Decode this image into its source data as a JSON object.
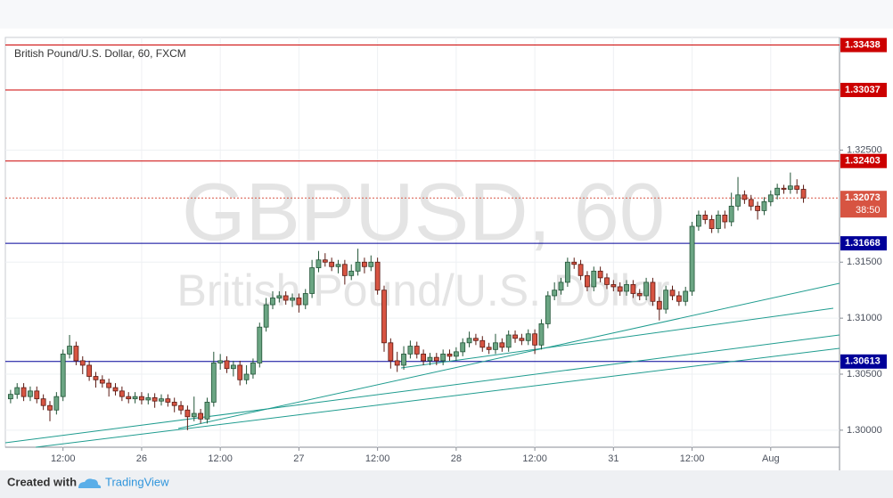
{
  "chart_data": {
    "type": "candlestick",
    "title": "British Pound/U.S. Dollar, 60, FXCM",
    "watermark": "GBPUSD, 60",
    "watermark_subtitle": "British Pound/U.S. Dollar",
    "up_color": "#6ba583",
    "down_color": "#d75442",
    "open": [
      1.3028,
      1.3032,
      1.3038,
      1.303,
      1.3035,
      1.3028,
      1.3022,
      1.3018,
      1.303,
      1.3068,
      1.3075,
      1.3062,
      1.3058,
      1.3048,
      1.3045,
      1.3042,
      1.3038,
      1.3035,
      1.303,
      1.3028,
      1.303,
      1.3027,
      1.3029,
      1.3026,
      1.3028,
      1.3025,
      1.3022,
      1.3018,
      1.3012,
      1.3015,
      1.301,
      1.3025,
      1.306,
      1.3062,
      1.3055,
      1.3058,
      1.3045,
      1.305,
      1.306,
      1.3092,
      1.3112,
      1.3118,
      1.312,
      1.3116,
      1.3118,
      1.3112,
      1.3122,
      1.3145,
      1.3152,
      1.315,
      1.3146,
      1.3148,
      1.3138,
      1.3142,
      1.315,
      1.3146,
      1.315,
      1.3125,
      1.3078,
      1.3062,
      1.3058,
      1.3068,
      1.3075,
      1.3068,
      1.3062,
      1.3065,
      1.3062,
      1.3068,
      1.3066,
      1.307,
      1.3078,
      1.3082,
      1.308,
      1.3074,
      1.3072,
      1.3078,
      1.3074,
      1.3085,
      1.3082,
      1.308,
      1.3086,
      1.3076,
      1.3095,
      1.312,
      1.3125,
      1.3132,
      1.315,
      1.3148,
      1.3138,
      1.3128,
      1.3142,
      1.3136,
      1.313,
      1.3128,
      1.3124,
      1.313,
      1.3122,
      1.312,
      1.3132,
      1.3115,
      1.3108,
      1.3125,
      1.312,
      1.3115,
      1.3124,
      1.3182,
      1.3192,
      1.3188,
      1.318,
      1.3192,
      1.3186,
      1.32,
      1.321,
      1.3206,
      1.32,
      1.3196,
      1.3204,
      1.321,
      1.3216,
      1.3215,
      1.3218,
      1.3215
    ],
    "high": [
      1.3036,
      1.3042,
      1.3042,
      1.3039,
      1.3039,
      1.3032,
      1.3026,
      1.3034,
      1.3072,
      1.3085,
      1.3079,
      1.3066,
      1.3062,
      1.3052,
      1.3049,
      1.3046,
      1.3042,
      1.3039,
      1.3034,
      1.3034,
      1.3034,
      1.3033,
      1.3033,
      1.3032,
      1.3032,
      1.3029,
      1.3026,
      1.3022,
      1.303,
      1.3019,
      1.3029,
      1.307,
      1.3068,
      1.3066,
      1.3062,
      1.3062,
      1.3058,
      1.3064,
      1.3096,
      1.3118,
      1.3124,
      1.3124,
      1.3124,
      1.3122,
      1.3122,
      1.3126,
      1.3152,
      1.316,
      1.3158,
      1.3154,
      1.3152,
      1.3152,
      1.3148,
      1.3162,
      1.3154,
      1.3156,
      1.3154,
      1.3129,
      1.3082,
      1.307,
      1.3075,
      1.308,
      1.3079,
      1.3072,
      1.3069,
      1.3069,
      1.3072,
      1.3072,
      1.3074,
      1.3082,
      1.3088,
      1.3086,
      1.3084,
      1.3078,
      1.3086,
      1.3082,
      1.3089,
      1.3089,
      1.3086,
      1.309,
      1.309,
      1.3099,
      1.3124,
      1.3132,
      1.3136,
      1.3154,
      1.3154,
      1.3152,
      1.3142,
      1.3146,
      1.3146,
      1.314,
      1.3134,
      1.3132,
      1.3134,
      1.3134,
      1.3126,
      1.3136,
      1.3136,
      1.3119,
      1.3129,
      1.3129,
      1.3124,
      1.3128,
      1.3186,
      1.3196,
      1.3196,
      1.3192,
      1.3196,
      1.3196,
      1.3212,
      1.3226,
      1.3214,
      1.321,
      1.3204,
      1.3208,
      1.3214,
      1.322,
      1.3219,
      1.323,
      1.3224,
      1.3219
    ],
    "low": [
      1.3024,
      1.3028,
      1.3026,
      1.3026,
      1.3024,
      1.3018,
      1.3008,
      1.3014,
      1.3026,
      1.3064,
      1.3058,
      1.305,
      1.3044,
      1.3038,
      1.3038,
      1.303,
      1.3031,
      1.3026,
      1.3024,
      1.3024,
      1.3023,
      1.3023,
      1.302,
      1.3022,
      1.3021,
      1.3016,
      1.3014,
      1.3,
      1.3008,
      1.3006,
      1.3006,
      1.3021,
      1.3054,
      1.3051,
      1.3048,
      1.304,
      1.3041,
      1.3046,
      1.3056,
      1.3088,
      1.3108,
      1.3114,
      1.3112,
      1.311,
      1.3105,
      1.3108,
      1.3118,
      1.3141,
      1.3146,
      1.3142,
      1.314,
      1.313,
      1.3134,
      1.3138,
      1.314,
      1.3142,
      1.3121,
      1.307,
      1.3055,
      1.3052,
      1.3054,
      1.3064,
      1.3064,
      1.3058,
      1.3058,
      1.3058,
      1.3058,
      1.3062,
      1.3062,
      1.3066,
      1.3074,
      1.3076,
      1.307,
      1.3068,
      1.3068,
      1.307,
      1.307,
      1.3078,
      1.3076,
      1.3076,
      1.3068,
      1.3072,
      1.3091,
      1.3116,
      1.3121,
      1.3128,
      1.3144,
      1.3134,
      1.3124,
      1.3124,
      1.3132,
      1.3126,
      1.3124,
      1.312,
      1.312,
      1.3118,
      1.3116,
      1.3116,
      1.3111,
      1.3098,
      1.3104,
      1.3116,
      1.3111,
      1.3111,
      1.312,
      1.3178,
      1.3184,
      1.3176,
      1.3176,
      1.318,
      1.3182,
      1.3196,
      1.3202,
      1.3196,
      1.3188,
      1.3192,
      1.32,
      1.3206,
      1.3211,
      1.3211,
      1.3211,
      1.3203
    ],
    "close": [
      1.3032,
      1.3038,
      1.303,
      1.3035,
      1.3028,
      1.3022,
      1.3018,
      1.303,
      1.3068,
      1.3075,
      1.3062,
      1.3058,
      1.3048,
      1.3045,
      1.3042,
      1.3038,
      1.3035,
      1.303,
      1.3028,
      1.303,
      1.3027,
      1.3029,
      1.3026,
      1.3028,
      1.3025,
      1.3022,
      1.3018,
      1.3012,
      1.3015,
      1.301,
      1.3025,
      1.306,
      1.3062,
      1.3055,
      1.3058,
      1.3045,
      1.305,
      1.306,
      1.3092,
      1.3112,
      1.3118,
      1.312,
      1.3116,
      1.3118,
      1.3112,
      1.3122,
      1.3145,
      1.3152,
      1.315,
      1.3146,
      1.3148,
      1.3138,
      1.3142,
      1.315,
      1.3146,
      1.315,
      1.3125,
      1.3078,
      1.3062,
      1.3058,
      1.3068,
      1.3075,
      1.3068,
      1.3062,
      1.3065,
      1.3062,
      1.3068,
      1.3066,
      1.307,
      1.3078,
      1.3082,
      1.308,
      1.3074,
      1.3072,
      1.3078,
      1.3074,
      1.3085,
      1.3082,
      1.308,
      1.3086,
      1.3076,
      1.3095,
      1.312,
      1.3125,
      1.3132,
      1.315,
      1.3148,
      1.3138,
      1.3128,
      1.3142,
      1.3136,
      1.313,
      1.3128,
      1.3124,
      1.313,
      1.3122,
      1.312,
      1.3132,
      1.3115,
      1.3108,
      1.3125,
      1.312,
      1.3115,
      1.3124,
      1.3182,
      1.3192,
      1.3188,
      1.318,
      1.3192,
      1.3186,
      1.32,
      1.321,
      1.3206,
      1.32,
      1.3196,
      1.3204,
      1.321,
      1.3216,
      1.3215,
      1.3218,
      1.3215,
      1.32073
    ],
    "xlim": [
      -0.8,
      126.5
    ],
    "xticks": [
      {
        "value": 8,
        "label": "12:00"
      },
      {
        "value": 20,
        "label": "26"
      },
      {
        "value": 32,
        "label": "12:00"
      },
      {
        "value": 44,
        "label": "27"
      },
      {
        "value": 56,
        "label": "12:00"
      },
      {
        "value": 68,
        "label": "28"
      },
      {
        "value": 80,
        "label": "12:00"
      },
      {
        "value": 92,
        "label": "31"
      },
      {
        "value": 104,
        "label": "12:00"
      },
      {
        "value": 116,
        "label": "Aug"
      }
    ],
    "ylim": [
      1.29848,
      1.33506
    ],
    "yticks": [
      {
        "value": 1.3,
        "label": "1.30000"
      },
      {
        "value": 1.305,
        "label": "1.30500"
      },
      {
        "value": 1.31,
        "label": "1.31000"
      },
      {
        "value": 1.315,
        "label": "1.31500"
      },
      {
        "value": 1.325,
        "label": "1.32500"
      }
    ],
    "grid": true,
    "levels": [
      {
        "value": 1.33438,
        "color": "#cc0000"
      },
      {
        "value": 1.33037,
        "color": "#cc0000"
      },
      {
        "value": 1.32403,
        "color": "#cc0000"
      },
      {
        "value": 1.31668,
        "color": "#000099"
      },
      {
        "value": 1.30613,
        "color": "#000099"
      }
    ],
    "last_price": {
      "value": 1.32073,
      "countdown": "38:50",
      "color": "#d75442"
    }
  },
  "footer": {
    "created": "Created with",
    "brand": "TradingView"
  }
}
